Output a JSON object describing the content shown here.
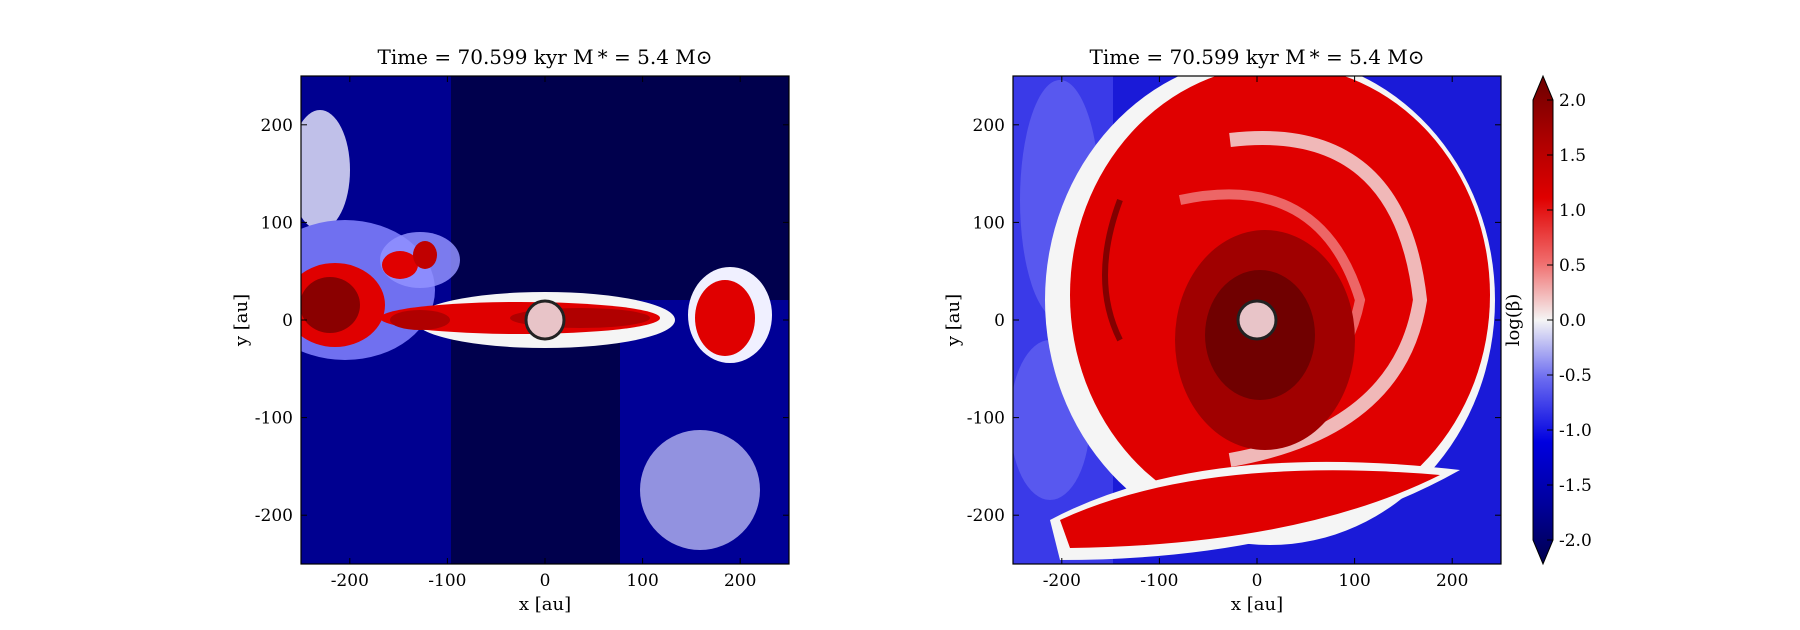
{
  "chart_data": [
    {
      "type": "heatmap",
      "title": "Time = 70.599 kyr    M * = 5.4 M⊙",
      "xlabel": "x [au]",
      "ylabel": "y [au]",
      "xlim": [
        -250,
        250
      ],
      "ylim": [
        -250,
        250
      ],
      "x_ticks": [
        "-200",
        "-100",
        "0",
        "100",
        "200"
      ],
      "y_ticks": [
        "200",
        "100",
        "0",
        "-100",
        "-200"
      ],
      "colorbar": false,
      "field": "log(β)",
      "description_features": {
        "sink_center": [
          0,
          0
        ],
        "sink_radius": 20,
        "horizontal_disk": {
          "y": 0,
          "x_range": [
            -250,
            120
          ],
          "peak": 1.8
        },
        "right_blob": {
          "x": 190,
          "y": 0,
          "peak": 1.6
        },
        "background": -2.0
      }
    },
    {
      "type": "heatmap",
      "title": "Time = 70.599 kyr    M * = 5.4 M⊙",
      "xlabel": "x [au]",
      "ylabel": "y [au]",
      "xlim": [
        -250,
        250
      ],
      "ylim": [
        -250,
        250
      ],
      "x_ticks": [
        "-200",
        "-100",
        "0",
        "100",
        "200"
      ],
      "y_ticks": [
        "200",
        "100",
        "0",
        "-100",
        "-200"
      ],
      "colorbar": true,
      "field": "log(β)",
      "description_features": {
        "sink_center": [
          0,
          0
        ],
        "sink_radius": 20,
        "spiral_disk": {
          "peak_center": 2.0,
          "outer_radius": 230
        },
        "background": -1.2
      }
    }
  ],
  "colorbar": {
    "label": "log(β)",
    "range": [
      -2.0,
      2.0
    ],
    "ticks": [
      "2.0",
      "1.5",
      "1.0",
      "0.5",
      "0.0",
      "-0.5",
      "-1.0",
      "-1.5",
      "-2.0"
    ],
    "colors": {
      "low": "#00004d",
      "mid_low": "#0000e0",
      "center": "#f5f5f5",
      "mid_high": "#e00000",
      "high": "#6b0000"
    }
  },
  "sink_color": "#e8c4c8"
}
